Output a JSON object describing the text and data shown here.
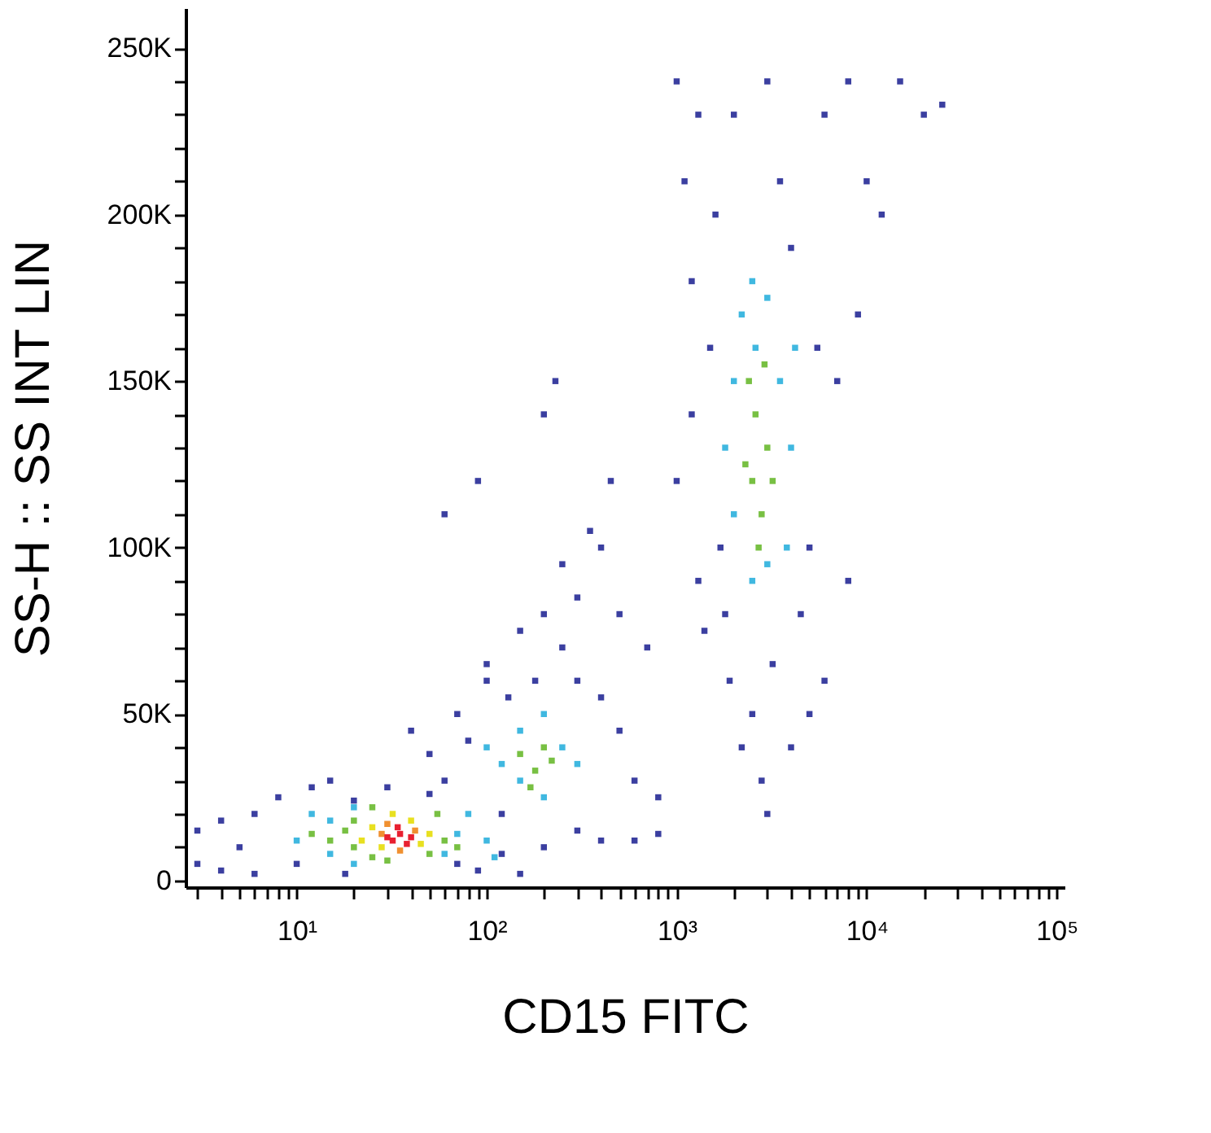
{
  "chart_data": {
    "type": "scatter",
    "xlabel": "CD15 FITC",
    "ylabel": "SS-H :: SS INT LIN",
    "log": "x",
    "legend": false,
    "grid": false,
    "marker": "square",
    "xlim": [
      2.6,
      110000
    ],
    "ylim": [
      -2000,
      262000
    ],
    "xticks": [
      {
        "value": 3,
        "label": null
      },
      {
        "value": 4,
        "label": null
      },
      {
        "value": 5,
        "label": null
      },
      {
        "value": 6,
        "label": null
      },
      {
        "value": 7,
        "label": null
      },
      {
        "value": 8,
        "label": null
      },
      {
        "value": 9,
        "label": null
      },
      {
        "value": 10,
        "label": "10¹"
      },
      {
        "value": 20,
        "label": null
      },
      {
        "value": 30,
        "label": null
      },
      {
        "value": 40,
        "label": null
      },
      {
        "value": 50,
        "label": null
      },
      {
        "value": 60,
        "label": null
      },
      {
        "value": 70,
        "label": null
      },
      {
        "value": 80,
        "label": null
      },
      {
        "value": 90,
        "label": null
      },
      {
        "value": 100,
        "label": "10²"
      },
      {
        "value": 200,
        "label": null
      },
      {
        "value": 300,
        "label": null
      },
      {
        "value": 400,
        "label": null
      },
      {
        "value": 500,
        "label": null
      },
      {
        "value": 600,
        "label": null
      },
      {
        "value": 700,
        "label": null
      },
      {
        "value": 800,
        "label": null
      },
      {
        "value": 900,
        "label": null
      },
      {
        "value": 1000,
        "label": "10³"
      },
      {
        "value": 2000,
        "label": null
      },
      {
        "value": 3000,
        "label": null
      },
      {
        "value": 4000,
        "label": null
      },
      {
        "value": 5000,
        "label": null
      },
      {
        "value": 6000,
        "label": null
      },
      {
        "value": 7000,
        "label": null
      },
      {
        "value": 8000,
        "label": null
      },
      {
        "value": 9000,
        "label": null
      },
      {
        "value": 10000,
        "label": "10⁴"
      },
      {
        "value": 20000,
        "label": null
      },
      {
        "value": 30000,
        "label": null
      },
      {
        "value": 40000,
        "label": null
      },
      {
        "value": 50000,
        "label": null
      },
      {
        "value": 60000,
        "label": null
      },
      {
        "value": 70000,
        "label": null
      },
      {
        "value": 80000,
        "label": null
      },
      {
        "value": 90000,
        "label": null
      },
      {
        "value": 100000,
        "label": "10⁵"
      }
    ],
    "yticks": [
      0,
      {
        "value": 10000,
        "label": null
      },
      {
        "value": 20000,
        "label": null
      },
      {
        "value": 30000,
        "label": null
      },
      {
        "value": 40000,
        "label": null
      },
      {
        "value": 50000,
        "label": "50K"
      },
      {
        "value": 60000,
        "label": null
      },
      {
        "value": 70000,
        "label": null
      },
      {
        "value": 80000,
        "label": null
      },
      {
        "value": 90000,
        "label": null
      },
      {
        "value": 100000,
        "label": "100K"
      },
      {
        "value": 110000,
        "label": null
      },
      {
        "value": 120000,
        "label": null
      },
      {
        "value": 130000,
        "label": null
      },
      {
        "value": 140000,
        "label": null
      },
      {
        "value": 150000,
        "label": "150K"
      },
      {
        "value": 160000,
        "label": null
      },
      {
        "value": 170000,
        "label": null
      },
      {
        "value": 180000,
        "label": null
      },
      {
        "value": 190000,
        "label": null
      },
      {
        "value": 200000,
        "label": "200K"
      },
      {
        "value": 210000,
        "label": null
      },
      {
        "value": 220000,
        "label": null
      },
      {
        "value": 230000,
        "label": null
      },
      {
        "value": 240000,
        "label": null
      },
      {
        "value": 250000,
        "label": "250K"
      }
    ],
    "series": [
      {
        "color": "#3b3fa0",
        "x": [
          3,
          3,
          4,
          4,
          5,
          6,
          6,
          8,
          10,
          12,
          15,
          18,
          20,
          30,
          50,
          70,
          90,
          120,
          150,
          200,
          300,
          400,
          600,
          800,
          40,
          50,
          80,
          60,
          90,
          100,
          130,
          60,
          70,
          100,
          150,
          200,
          250,
          300,
          400,
          500,
          600,
          800,
          120,
          180,
          250,
          300,
          400,
          500,
          700,
          200,
          230,
          350,
          450,
          1000,
          1100,
          1200,
          1300,
          1500,
          1600,
          1700,
          1800,
          1900,
          2000,
          2200,
          2500,
          2800,
          3000,
          3200,
          3500,
          4000,
          4500,
          5000,
          5500,
          6000,
          7000,
          8000,
          9000,
          10000,
          12000,
          15000,
          20000,
          1200,
          1000,
          1400,
          4000,
          5000,
          6000,
          25000,
          3000,
          8000,
          1300
        ],
        "values": [
          5000,
          15000,
          3000,
          18000,
          10000,
          2000,
          20000,
          25000,
          5000,
          28000,
          30000,
          2000,
          24000,
          28000,
          26000,
          5000,
          3000,
          8000,
          2000,
          10000,
          15000,
          12000,
          12000,
          14000,
          45000,
          38000,
          42000,
          110000,
          120000,
          60000,
          55000,
          30000,
          50000,
          65000,
          75000,
          80000,
          70000,
          60000,
          55000,
          45000,
          30000,
          25000,
          20000,
          60000,
          95000,
          85000,
          100000,
          80000,
          70000,
          140000,
          150000,
          105000,
          120000,
          240000,
          210000,
          180000,
          230000,
          160000,
          200000,
          100000,
          80000,
          60000,
          230000,
          40000,
          50000,
          30000,
          240000,
          65000,
          210000,
          190000,
          80000,
          50000,
          160000,
          230000,
          150000,
          240000,
          170000,
          210000,
          200000,
          240000,
          230000,
          140000,
          120000,
          75000,
          40000,
          100000,
          60000,
          233000,
          20000,
          90000,
          90000
        ]
      },
      {
        "color": "#40b8e0",
        "x": [
          10,
          12,
          15,
          15,
          20,
          20,
          60,
          70,
          80,
          100,
          110,
          100,
          120,
          150,
          150,
          200,
          250,
          300,
          200,
          2000,
          2200,
          2500,
          3000,
          3500,
          4000,
          3800,
          2000,
          1800,
          2500,
          3000,
          2600,
          4200
        ],
        "values": [
          12000,
          20000,
          8000,
          18000,
          5000,
          22000,
          8000,
          14000,
          20000,
          12000,
          7000,
          40000,
          35000,
          45000,
          30000,
          50000,
          40000,
          35000,
          25000,
          150000,
          170000,
          180000,
          175000,
          150000,
          130000,
          100000,
          110000,
          130000,
          90000,
          95000,
          160000,
          160000
        ]
      },
      {
        "color": "#78c043",
        "x": [
          15,
          18,
          20,
          20,
          25,
          25,
          30,
          50,
          55,
          60,
          70,
          12,
          150,
          180,
          200,
          220,
          170,
          2500,
          2600,
          2800,
          3000,
          2400,
          2700,
          3200,
          2900,
          2300
        ],
        "values": [
          12000,
          15000,
          10000,
          18000,
          7000,
          22000,
          6000,
          8000,
          20000,
          12000,
          10000,
          14000,
          38000,
          33000,
          40000,
          36000,
          28000,
          120000,
          140000,
          110000,
          130000,
          150000,
          100000,
          120000,
          155000,
          125000
        ]
      },
      {
        "color": "#e8e020",
        "x": [
          22,
          25,
          28,
          40,
          45,
          50,
          32
        ],
        "values": [
          12000,
          16000,
          10000,
          18000,
          11000,
          14000,
          20000
        ]
      },
      {
        "color": "#f09030",
        "x": [
          28,
          35,
          42,
          30
        ],
        "values": [
          14000,
          9000,
          15000,
          17000
        ]
      },
      {
        "color": "#e82030",
        "x": [
          32,
          35,
          38,
          40,
          34,
          30
        ],
        "values": [
          12000,
          14000,
          11000,
          13000,
          16000,
          13000
        ]
      }
    ]
  }
}
